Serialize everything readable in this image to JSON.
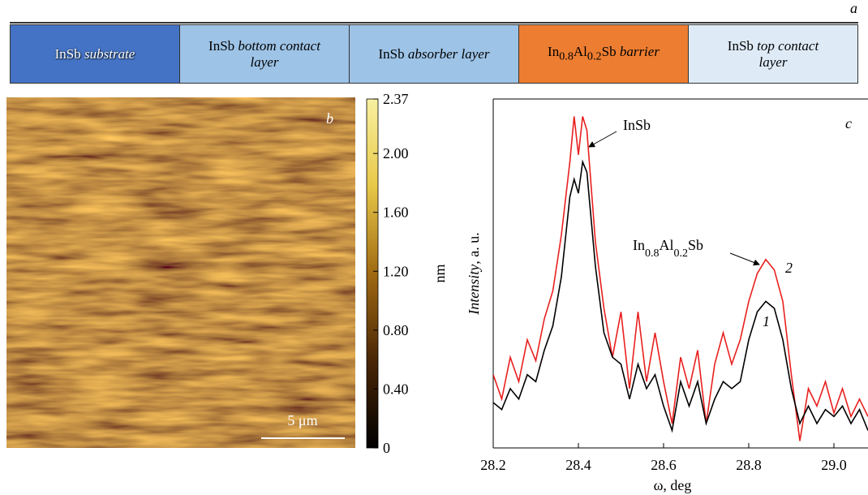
{
  "panel_a": {
    "letter": "a",
    "layers": [
      {
        "material": [
          "InSb"
        ],
        "role": "substrate",
        "color": "#4472c4"
      },
      {
        "material": [
          "InSb"
        ],
        "role": "bottom contact layer",
        "color": "#9dc3e6"
      },
      {
        "material": [
          "InSb"
        ],
        "role": "absorber layer",
        "color": "#9dc3e6"
      },
      {
        "material": [
          "In",
          "0.8",
          "Al",
          "0.2",
          "Sb"
        ],
        "role": "barrier",
        "color": "#ed7d31"
      },
      {
        "material": [
          "InSb"
        ],
        "role": "top contact layer",
        "color": "#deebf7"
      }
    ]
  },
  "panel_b": {
    "letter": "b",
    "scale_bar": "5 μm"
  },
  "chart_data": [
    {
      "type": "line",
      "letter": "c",
      "xlabel": "ω, deg",
      "ylabel": [
        "Intensity",
        ", a. u."
      ],
      "xlim": [
        28.2,
        29.08
      ],
      "ylim": [
        0,
        100
      ],
      "xticks": [
        28.2,
        28.4,
        28.6,
        28.8,
        {
          "value": 29,
          "label": "29.0"
        }
      ],
      "annotations": [
        [
          "InSb"
        ],
        [
          "In",
          "0.8",
          "Al",
          "0.2",
          "Sb"
        ]
      ],
      "x": [
        28.2,
        28.22,
        28.24,
        28.26,
        28.28,
        28.3,
        28.32,
        28.34,
        28.36,
        28.38,
        28.39,
        28.4,
        28.41,
        28.42,
        28.44,
        28.46,
        28.48,
        28.5,
        28.52,
        28.54,
        28.56,
        28.58,
        28.6,
        28.62,
        28.64,
        28.66,
        28.68,
        28.7,
        28.72,
        28.74,
        28.76,
        28.78,
        28.8,
        28.82,
        28.84,
        28.86,
        28.88,
        28.9,
        28.92,
        28.94,
        28.96,
        28.98,
        29.0,
        29.02,
        29.04,
        29.06,
        29.08
      ],
      "series": [
        {
          "name": "1",
          "color": "#000000",
          "values": [
            13,
            11,
            17,
            14,
            21,
            19,
            28,
            35,
            49,
            72,
            77,
            73,
            82,
            79,
            52,
            33,
            26,
            24,
            14,
            24,
            17,
            21,
            12,
            5,
            19,
            12,
            19,
            7,
            14,
            19,
            17,
            19,
            31,
            39,
            42,
            40,
            31,
            17,
            7,
            12,
            7,
            11,
            9,
            12,
            7,
            11,
            5
          ]
        },
        {
          "name": "2",
          "color": "#e8201e",
          "values": [
            21,
            14,
            26,
            19,
            31,
            25,
            37,
            45,
            61,
            82,
            95,
            84,
            95,
            91,
            59,
            40,
            26,
            39,
            17,
            39,
            19,
            33,
            19,
            7,
            26,
            17,
            28,
            7,
            24,
            33,
            24,
            31,
            42,
            50,
            54,
            51,
            42,
            21,
            2,
            17,
            12,
            19,
            10,
            17,
            9,
            14,
            9
          ]
        }
      ]
    },
    {
      "type": "colorbar",
      "label": "nm",
      "ylim": [
        0,
        2.37
      ],
      "yticks": [
        2.37,
        {
          "value": 2,
          "label": "2.00"
        },
        {
          "value": 1.6,
          "label": "1.60"
        },
        {
          "value": 1.2,
          "label": "1.20"
        },
        {
          "value": 0.8,
          "label": "0.80"
        },
        {
          "value": 0.4,
          "label": "0.40"
        },
        0
      ],
      "colors": [
        "#000000",
        "#4a2606",
        "#a06a12",
        "#e8c848",
        "#f8f0a0"
      ]
    }
  ]
}
